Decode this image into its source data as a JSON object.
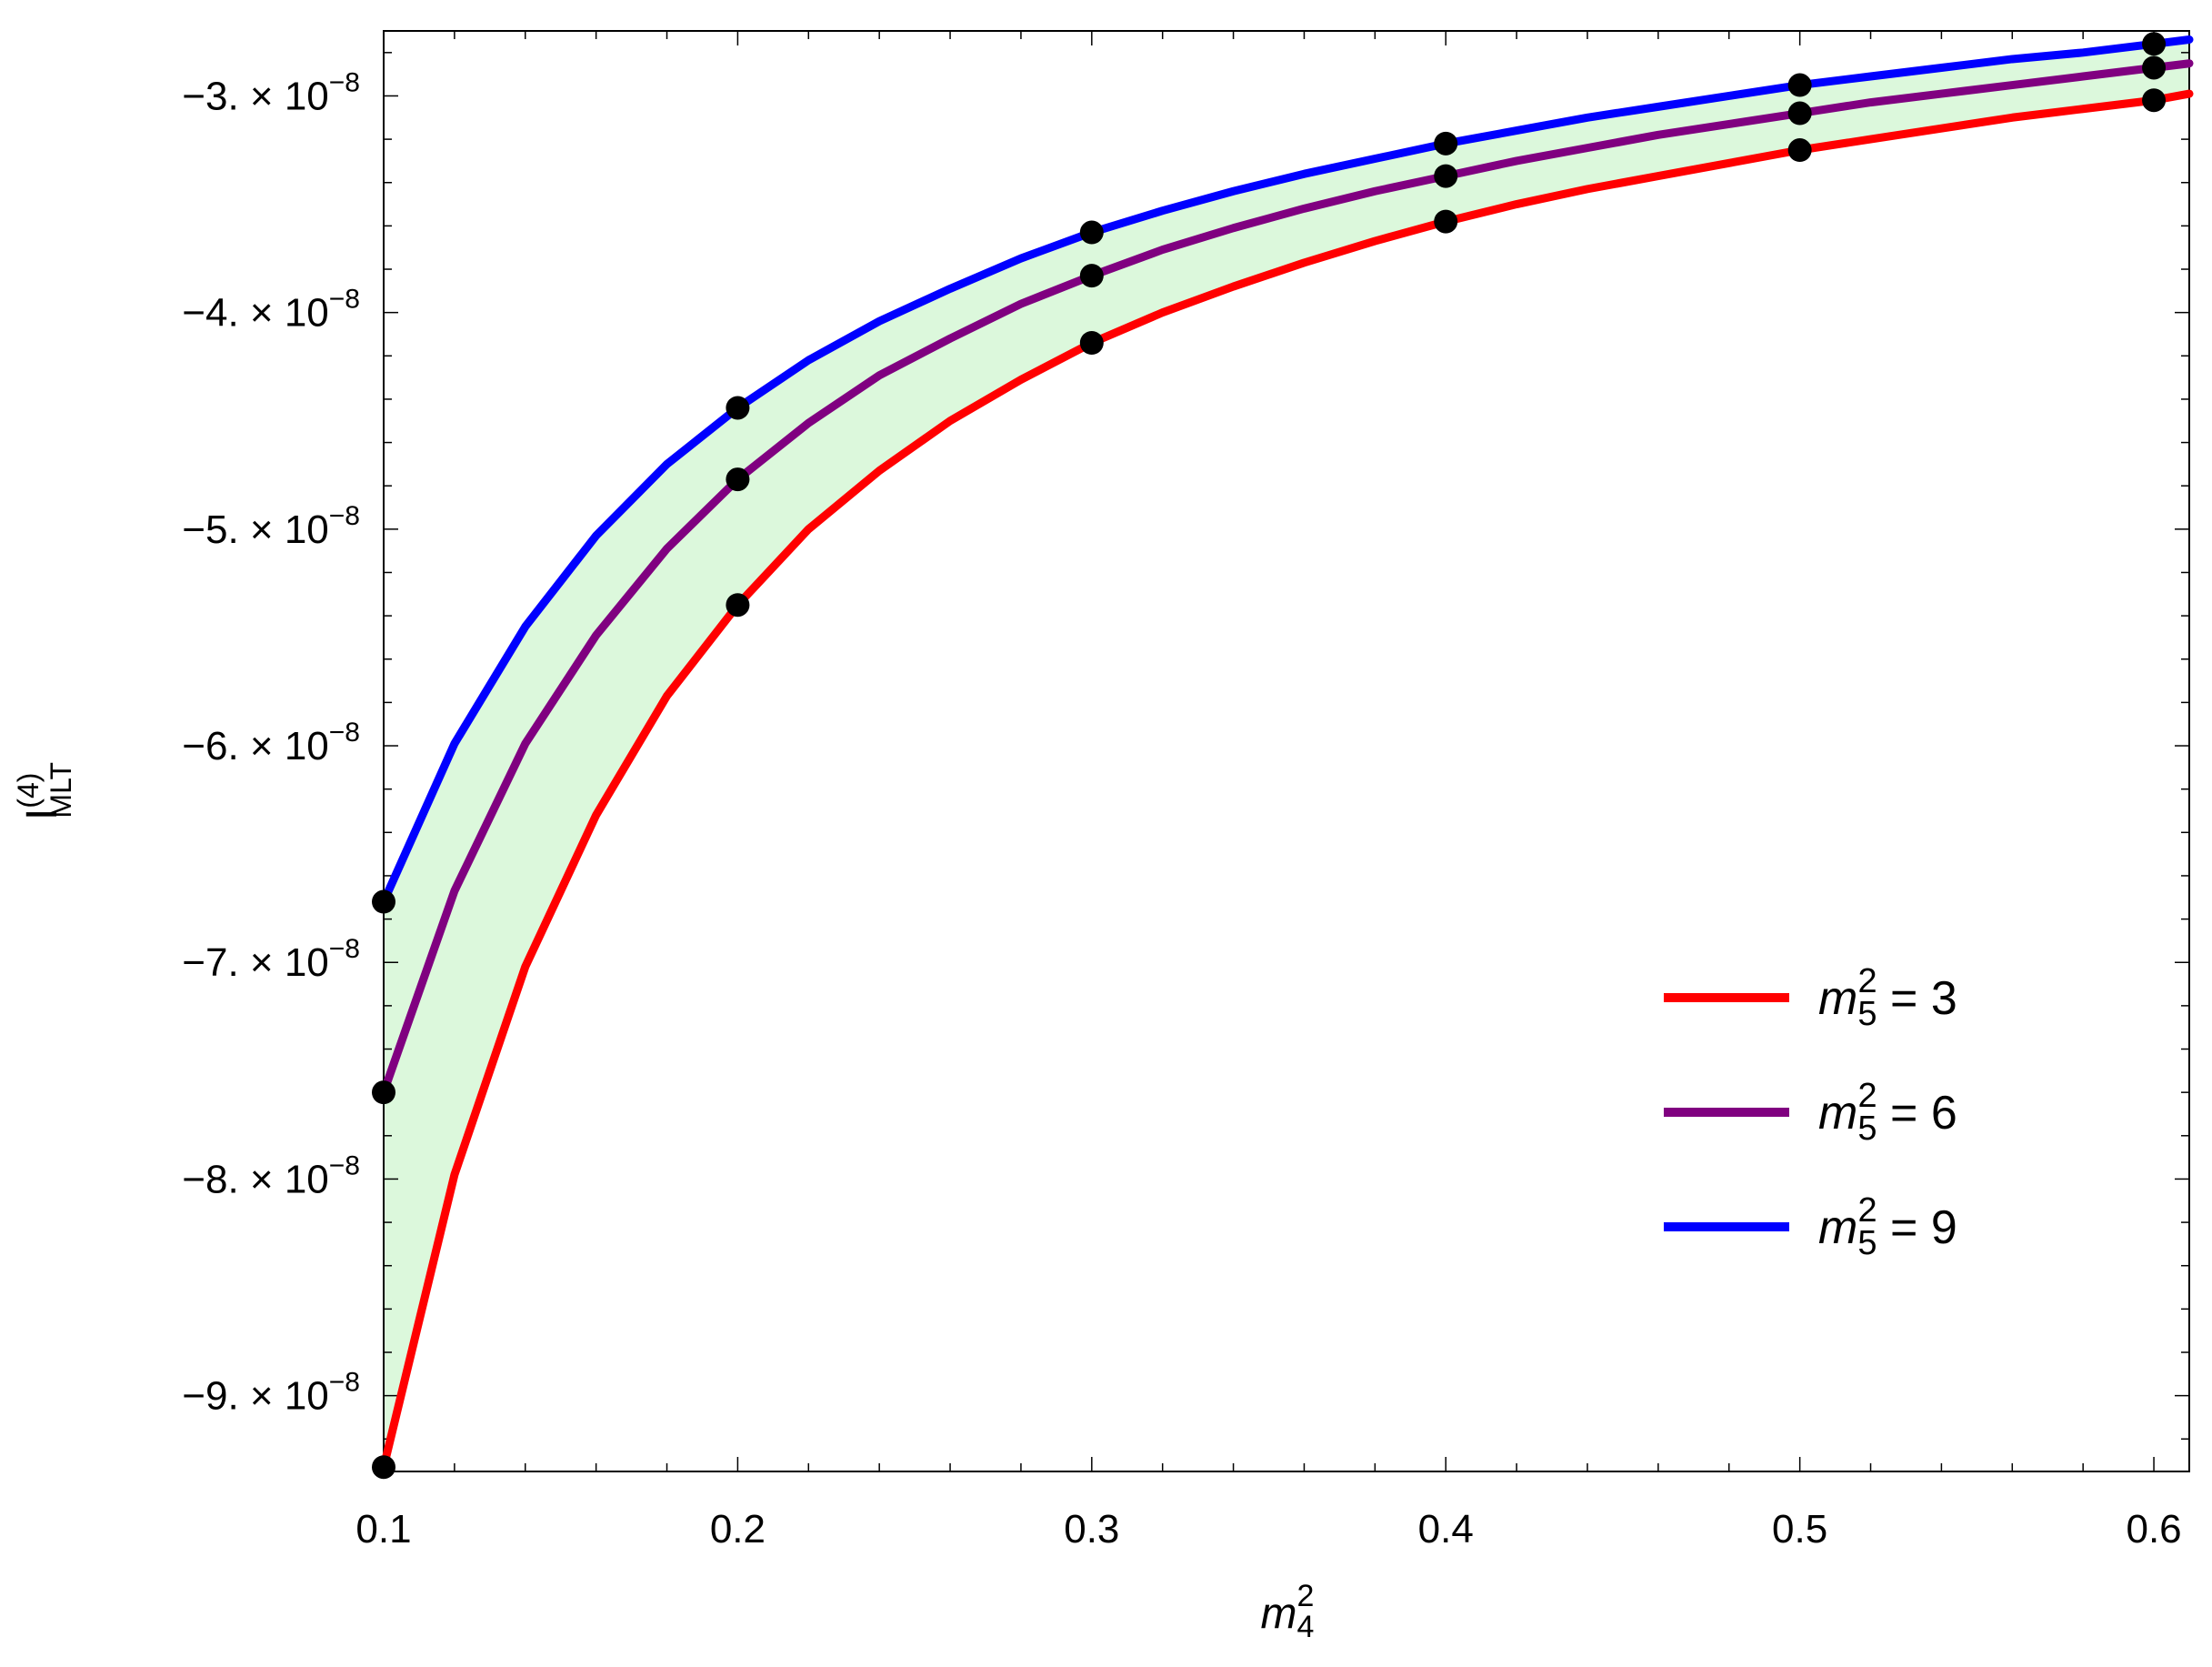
{
  "chart_data": {
    "type": "line",
    "xlabel": {
      "base": "m",
      "sup": "2",
      "sub": "4"
    },
    "ylabel": {
      "base": "I",
      "sup": "(4)",
      "sub": "MLT"
    },
    "xlim": [
      0.1,
      0.61
    ],
    "ylim": [
      -9.35e-08,
      -2.7e-08
    ],
    "x_ticks": [
      {
        "value": 0.1,
        "label": "0.1"
      },
      {
        "value": 0.2,
        "label": "0.2"
      },
      {
        "value": 0.3,
        "label": "0.3"
      },
      {
        "value": 0.4,
        "label": "0.4"
      },
      {
        "value": 0.5,
        "label": "0.5"
      },
      {
        "value": 0.6,
        "label": "0.6"
      }
    ],
    "y_ticks": [
      {
        "value": -3e-08,
        "mantissa": "−3.",
        "exp": "−8"
      },
      {
        "value": -4e-08,
        "mantissa": "−4.",
        "exp": "−8"
      },
      {
        "value": -5e-08,
        "mantissa": "−5.",
        "exp": "−8"
      },
      {
        "value": -6e-08,
        "mantissa": "−6.",
        "exp": "−8"
      },
      {
        "value": -7e-08,
        "mantissa": "−7.",
        "exp": "−8"
      },
      {
        "value": -8e-08,
        "mantissa": "−8.",
        "exp": "−8"
      },
      {
        "value": -9e-08,
        "mantissa": "−9.",
        "exp": "−8"
      }
    ],
    "times_symbol": "× 10",
    "fill_between": {
      "color": "#dcf8dc",
      "series": [
        "m5^2 = 3",
        "m5^2 = 9"
      ]
    },
    "series": [
      {
        "name": "m5^2 = 3",
        "legend": {
          "base": "m",
          "sup": "2",
          "sub": "5",
          "rest": " = 3"
        },
        "color": "#ff0000",
        "x": [
          0.1,
          0.12,
          0.14,
          0.16,
          0.18,
          0.2,
          0.22,
          0.24,
          0.26,
          0.28,
          0.3,
          0.32,
          0.34,
          0.36,
          0.38,
          0.4,
          0.42,
          0.44,
          0.46,
          0.48,
          0.5,
          0.52,
          0.54,
          0.56,
          0.58,
          0.6,
          0.61
        ],
        "y": [
          -9.33e-08,
          -7.98e-08,
          -7.02e-08,
          -6.32e-08,
          -5.77e-08,
          -5.35e-08,
          -5e-08,
          -4.73e-08,
          -4.5e-08,
          -4.31e-08,
          -4.14e-08,
          -4e-08,
          -3.88e-08,
          -3.77e-08,
          -3.67e-08,
          -3.58e-08,
          -3.5e-08,
          -3.43e-08,
          -3.37e-08,
          -3.31e-08,
          -3.25e-08,
          -3.2e-08,
          -3.15e-08,
          -3.1e-08,
          -3.06e-08,
          -3.02e-08,
          -2.99e-08
        ],
        "markers_x": [
          0.1,
          0.2,
          0.3,
          0.4,
          0.5,
          0.6
        ],
        "markers_y": [
          -9.33e-08,
          -5.35e-08,
          -4.14e-08,
          -3.58e-08,
          -3.25e-08,
          -3.02e-08
        ]
      },
      {
        "name": "m5^2 = 6",
        "legend": {
          "base": "m",
          "sup": "2",
          "sub": "5",
          "rest": " = 6"
        },
        "color": "#800080",
        "x": [
          0.1,
          0.12,
          0.14,
          0.16,
          0.18,
          0.2,
          0.22,
          0.24,
          0.26,
          0.28,
          0.3,
          0.32,
          0.34,
          0.36,
          0.38,
          0.4,
          0.42,
          0.44,
          0.46,
          0.48,
          0.5,
          0.52,
          0.54,
          0.56,
          0.58,
          0.6,
          0.61
        ],
        "y": [
          -7.6e-08,
          -6.67e-08,
          -5.99e-08,
          -5.49e-08,
          -5.09e-08,
          -4.77e-08,
          -4.51e-08,
          -4.29e-08,
          -4.12e-08,
          -3.96e-08,
          -3.83e-08,
          -3.71e-08,
          -3.61e-08,
          -3.52e-08,
          -3.44e-08,
          -3.37e-08,
          -3.3e-08,
          -3.24e-08,
          -3.18e-08,
          -3.13e-08,
          -3.08e-08,
          -3.03e-08,
          -2.99e-08,
          -2.95e-08,
          -2.91e-08,
          -2.87e-08,
          -2.85e-08
        ],
        "markers_x": [
          0.1,
          0.2,
          0.3,
          0.4,
          0.5,
          0.6
        ],
        "markers_y": [
          -7.6e-08,
          -4.77e-08,
          -3.83e-08,
          -3.37e-08,
          -3.08e-08,
          -2.87e-08
        ]
      },
      {
        "name": "m5^2 = 9",
        "legend": {
          "base": "m",
          "sup": "2",
          "sub": "5",
          "rest": " = 9"
        },
        "color": "#0000ff",
        "x": [
          0.1,
          0.12,
          0.14,
          0.16,
          0.18,
          0.2,
          0.22,
          0.24,
          0.26,
          0.28,
          0.3,
          0.32,
          0.34,
          0.36,
          0.38,
          0.4,
          0.42,
          0.44,
          0.46,
          0.48,
          0.5,
          0.52,
          0.54,
          0.56,
          0.58,
          0.6,
          0.61
        ],
        "y": [
          -6.72e-08,
          -5.99e-08,
          -5.45e-08,
          -5.03e-08,
          -4.7e-08,
          -4.44e-08,
          -4.22e-08,
          -4.04e-08,
          -3.89e-08,
          -3.75e-08,
          -3.63e-08,
          -3.53e-08,
          -3.44e-08,
          -3.36e-08,
          -3.29e-08,
          -3.22e-08,
          -3.16e-08,
          -3.1e-08,
          -3.05e-08,
          -3e-08,
          -2.95e-08,
          -2.91e-08,
          -2.87e-08,
          -2.83e-08,
          -2.8e-08,
          -2.76e-08,
          -2.74e-08
        ],
        "markers_x": [
          0.1,
          0.2,
          0.3,
          0.4,
          0.5,
          0.6
        ],
        "markers_y": [
          -6.72e-08,
          -4.44e-08,
          -3.63e-08,
          -3.22e-08,
          -2.95e-08,
          -2.76e-08
        ]
      }
    ]
  }
}
